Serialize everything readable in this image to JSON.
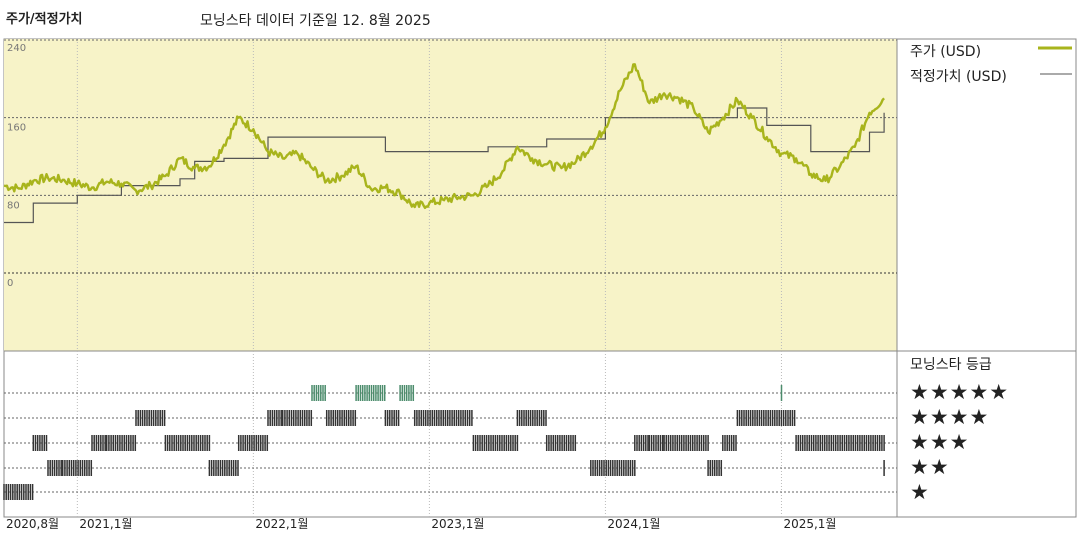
{
  "header": {
    "title": "주가/적정가치",
    "subtitle": "모닝스타 데이터 기준일 12. 8월 2025"
  },
  "legend": {
    "price_label": "주가 (USD)",
    "fair_value_label": "적정가치 (USD)",
    "price_color": "#a8b41c",
    "fair_value_color": "#555555"
  },
  "rating": {
    "title": "모닝스타 등급",
    "stars": [
      "★★★★★",
      "★★★★",
      "★★★",
      "★★",
      "★"
    ],
    "colors": {
      "5": "#4c8c6c",
      "other": "#333333"
    }
  },
  "chart_data": {
    "type": "line",
    "xlabels": [
      "2020,8월",
      "2021,1월",
      "2022,1월",
      "2023,1월",
      "2024,1월",
      "2025,1월"
    ],
    "yticks": [
      "240",
      "160",
      "80",
      "0"
    ],
    "ylim": [
      0,
      240
    ],
    "background": "#f7f3c8",
    "series": [
      {
        "name": "주가 (USD)",
        "points": [
          [
            "2020-08",
            90
          ],
          [
            "2020-09",
            87
          ],
          [
            "2020-10",
            95
          ],
          [
            "2020-11",
            98
          ],
          [
            "2020-12",
            96
          ],
          [
            "2021-01",
            92
          ],
          [
            "2021-02",
            88
          ],
          [
            "2021-03",
            94
          ],
          [
            "2021-04",
            92
          ],
          [
            "2021-05",
            85
          ],
          [
            "2021-06",
            90
          ],
          [
            "2021-07",
            100
          ],
          [
            "2021-08",
            118
          ],
          [
            "2021-09",
            108
          ],
          [
            "2021-10",
            110
          ],
          [
            "2021-11",
            132
          ],
          [
            "2021-12",
            160
          ],
          [
            "2022-01",
            148
          ],
          [
            "2022-02",
            125
          ],
          [
            "2022-03",
            118
          ],
          [
            "2022-04",
            123
          ],
          [
            "2022-05",
            108
          ],
          [
            "2022-06",
            95
          ],
          [
            "2022-07",
            100
          ],
          [
            "2022-08",
            110
          ],
          [
            "2022-09",
            87
          ],
          [
            "2022-10",
            88
          ],
          [
            "2022-11",
            82
          ],
          [
            "2022-12",
            68
          ],
          [
            "2023-01",
            72
          ],
          [
            "2023-02",
            75
          ],
          [
            "2023-03",
            78
          ],
          [
            "2023-04",
            80
          ],
          [
            "2023-05",
            90
          ],
          [
            "2023-06",
            105
          ],
          [
            "2023-07",
            130
          ],
          [
            "2023-08",
            118
          ],
          [
            "2023-09",
            112
          ],
          [
            "2023-10",
            108
          ],
          [
            "2023-11",
            115
          ],
          [
            "2023-12",
            130
          ],
          [
            "2024-01",
            150
          ],
          [
            "2024-02",
            188
          ],
          [
            "2024-03",
            215
          ],
          [
            "2024-04",
            175
          ],
          [
            "2024-05",
            185
          ],
          [
            "2024-06",
            180
          ],
          [
            "2024-07",
            170
          ],
          [
            "2024-08",
            145
          ],
          [
            "2024-09",
            160
          ],
          [
            "2024-10",
            178
          ],
          [
            "2024-11",
            160
          ],
          [
            "2024-12",
            140
          ],
          [
            "2025-01",
            123
          ],
          [
            "2025-02",
            118
          ],
          [
            "2025-03",
            102
          ],
          [
            "2025-04",
            95
          ],
          [
            "2025-05",
            110
          ],
          [
            "2025-06",
            130
          ],
          [
            "2025-07",
            165
          ],
          [
            "2025-08",
            180
          ]
        ]
      },
      {
        "name": "적정가치 (USD)",
        "points": [
          [
            "2020-08",
            52
          ],
          [
            "2020-10",
            52
          ],
          [
            "2020-10",
            72
          ],
          [
            "2021-01",
            72
          ],
          [
            "2021-01",
            80
          ],
          [
            "2021-04",
            80
          ],
          [
            "2021-04",
            90
          ],
          [
            "2021-08",
            90
          ],
          [
            "2021-08",
            97
          ],
          [
            "2021-09",
            97
          ],
          [
            "2021-09",
            115
          ],
          [
            "2021-11",
            115
          ],
          [
            "2021-11",
            118
          ],
          [
            "2022-02",
            118
          ],
          [
            "2022-02",
            140
          ],
          [
            "2022-10",
            140
          ],
          [
            "2022-10",
            125
          ],
          [
            "2023-05",
            125
          ],
          [
            "2023-05",
            130
          ],
          [
            "2023-09",
            130
          ],
          [
            "2023-09",
            138
          ],
          [
            "2024-01",
            138
          ],
          [
            "2024-01",
            160
          ],
          [
            "2024-10",
            160
          ],
          [
            "2024-10",
            170
          ],
          [
            "2024-12",
            170
          ],
          [
            "2024-12",
            152
          ],
          [
            "2025-03",
            152
          ],
          [
            "2025-03",
            125
          ],
          [
            "2025-07",
            125
          ],
          [
            "2025-07",
            145
          ],
          [
            "2025-08",
            145
          ],
          [
            "2025-08",
            165
          ],
          [
            "2025-08",
            165
          ]
        ]
      }
    ],
    "ratings": [
      {
        "stars": 1,
        "from": "2020-08",
        "to": "2020-10"
      },
      {
        "stars": 3,
        "from": "2020-10",
        "to": "2020-11"
      },
      {
        "stars": 2,
        "from": "2020-11",
        "to": "2020-12"
      },
      {
        "stars": 2,
        "from": "2020-12",
        "to": "2021-02"
      },
      {
        "stars": 3,
        "from": "2021-02",
        "to": "2021-03"
      },
      {
        "stars": 3,
        "from": "2021-03",
        "to": "2021-05"
      },
      {
        "stars": 4,
        "from": "2021-05",
        "to": "2021-07"
      },
      {
        "stars": 3,
        "from": "2021-07",
        "to": "2021-10"
      },
      {
        "stars": 2,
        "from": "2021-10",
        "to": "2021-12"
      },
      {
        "stars": 3,
        "from": "2021-12",
        "to": "2022-02"
      },
      {
        "stars": 4,
        "from": "2022-02",
        "to": "2022-03"
      },
      {
        "stars": 4,
        "from": "2022-03",
        "to": "2022-05"
      },
      {
        "stars": 5,
        "from": "2022-05",
        "to": "2022-06"
      },
      {
        "stars": 4,
        "from": "2022-06",
        "to": "2022-08"
      },
      {
        "stars": 5,
        "from": "2022-08",
        "to": "2022-10"
      },
      {
        "stars": 4,
        "from": "2022-10",
        "to": "2022-11"
      },
      {
        "stars": 5,
        "from": "2022-11",
        "to": "2022-12"
      },
      {
        "stars": 4,
        "from": "2022-12",
        "to": "2023-04"
      },
      {
        "stars": 3,
        "from": "2023-04",
        "to": "2023-07"
      },
      {
        "stars": 4,
        "from": "2023-07",
        "to": "2023-09"
      },
      {
        "stars": 3,
        "from": "2023-09",
        "to": "2023-11"
      },
      {
        "stars": 2,
        "from": "2023-12",
        "to": "2024-03"
      },
      {
        "stars": 3,
        "from": "2024-03",
        "to": "2024-04"
      },
      {
        "stars": 3,
        "from": "2024-04",
        "to": "2024-05"
      },
      {
        "stars": 3,
        "from": "2024-05",
        "to": "2024-08"
      },
      {
        "stars": 2,
        "from": "2024-08",
        "to": "2024-09"
      },
      {
        "stars": 3,
        "from": "2024-09",
        "to": "2024-10"
      },
      {
        "stars": 4,
        "from": "2024-10",
        "to": "2025-02"
      },
      {
        "stars": 5,
        "from": "2025-01",
        "to": "2025-01"
      },
      {
        "stars": 3,
        "from": "2025-02",
        "to": "2025-08"
      },
      {
        "stars": 2,
        "from": "2025-08",
        "to": "2025-08"
      }
    ]
  }
}
